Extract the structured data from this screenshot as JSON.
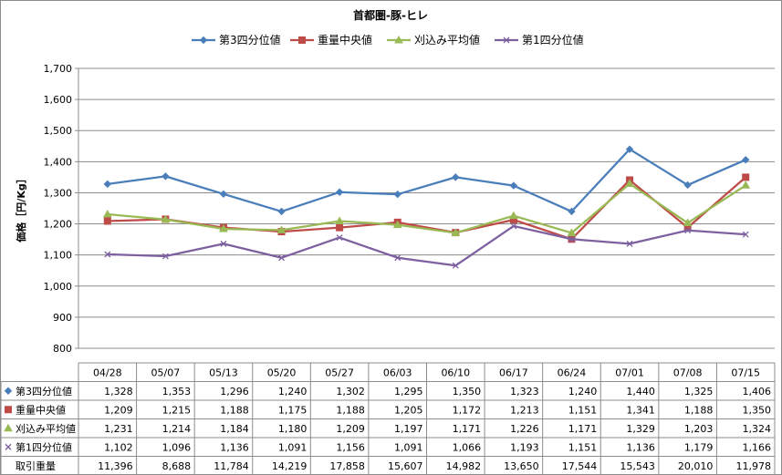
{
  "chart_data": {
    "type": "line",
    "title": "首都圏-豚-ヒレ",
    "ylabel": "価格［円/Kg］",
    "xlabel": "",
    "ylim": [
      800,
      1700
    ],
    "yticks": [
      800,
      900,
      1000,
      1100,
      1200,
      1300,
      1400,
      1500,
      1600,
      1700
    ],
    "ytick_labels": [
      "800",
      "900",
      "1,000",
      "1,100",
      "1,200",
      "1,300",
      "1,400",
      "1,500",
      "1,600",
      "1,700"
    ],
    "grid": "horizontal",
    "legend_position": "top",
    "categories": [
      "04/28",
      "05/07",
      "05/13",
      "05/20",
      "05/27",
      "06/03",
      "06/10",
      "06/17",
      "06/24",
      "07/01",
      "07/08",
      "07/15"
    ],
    "series": [
      {
        "name": "第3四分位値",
        "color": "#4a7ebb",
        "marker": "diamond",
        "values": [
          1328,
          1353,
          1296,
          1240,
          1302,
          1295,
          1350,
          1323,
          1240,
          1440,
          1325,
          1406
        ]
      },
      {
        "name": "重量中央値",
        "color": "#be4b48",
        "marker": "square",
        "values": [
          1209,
          1215,
          1188,
          1175,
          1188,
          1205,
          1172,
          1213,
          1151,
          1341,
          1188,
          1350
        ]
      },
      {
        "name": "刈込み平均値",
        "color": "#98b954",
        "marker": "triangle",
        "values": [
          1231,
          1214,
          1184,
          1180,
          1209,
          1197,
          1171,
          1226,
          1171,
          1329,
          1203,
          1324
        ]
      },
      {
        "name": "第1四分位値",
        "color": "#7d60a0",
        "marker": "x",
        "values": [
          1102,
          1096,
          1136,
          1091,
          1156,
          1091,
          1066,
          1193,
          1151,
          1136,
          1179,
          1166
        ]
      }
    ],
    "table": {
      "series_rows": [
        [
          "1,328",
          "1,353",
          "1,296",
          "1,240",
          "1,302",
          "1,295",
          "1,350",
          "1,323",
          "1,240",
          "1,440",
          "1,325",
          "1,406"
        ],
        [
          "1,209",
          "1,215",
          "1,188",
          "1,175",
          "1,188",
          "1,205",
          "1,172",
          "1,213",
          "1,151",
          "1,341",
          "1,188",
          "1,350"
        ],
        [
          "1,231",
          "1,214",
          "1,184",
          "1,180",
          "1,209",
          "1,197",
          "1,171",
          "1,226",
          "1,171",
          "1,329",
          "1,203",
          "1,324"
        ],
        [
          "1,102",
          "1,096",
          "1,136",
          "1,091",
          "1,156",
          "1,091",
          "1,066",
          "1,193",
          "1,151",
          "1,136",
          "1,179",
          "1,166"
        ]
      ],
      "volume_label": "取引重量",
      "volume": [
        11396,
        8688,
        11784,
        14219,
        17858,
        15607,
        14982,
        13650,
        17544,
        15543,
        20010,
        11978
      ],
      "volume_display": [
        "11,396",
        "8,688",
        "11,784",
        "14,219",
        "17,858",
        "15,607",
        "14,982",
        "13,650",
        "17,544",
        "15,543",
        "20,010",
        "11,978"
      ]
    }
  }
}
